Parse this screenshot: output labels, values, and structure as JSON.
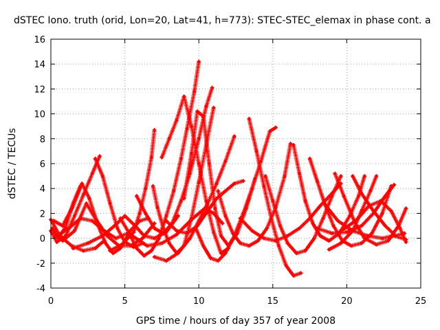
{
  "chart_data": {
    "type": "scatter",
    "title": "dSTEC Iono. truth (orid, Lon=20, Lat=41, h=773): STEC-STEC_elemax in phase cont. a",
    "xlabel": "GPS time / hours of day 357 of year 2008",
    "ylabel": "dSTEC  / TECUs",
    "xlim": [
      0,
      25
    ],
    "ylim": [
      -4,
      16
    ],
    "xticks": [
      "0",
      "5",
      "10",
      "15",
      "20",
      "25"
    ],
    "yticks": [
      "-4",
      "-2",
      "0",
      "2",
      "4",
      "6",
      "8",
      "10",
      "12",
      "14",
      "16"
    ],
    "grid": true,
    "marker": "plus",
    "color": "#ff0000",
    "series": [
      {
        "points": [
          [
            0.0,
            1.5
          ],
          [
            0.6,
            0.2
          ],
          [
            1.4,
            -0.6
          ],
          [
            2.2,
            -1.0
          ],
          [
            3.0,
            -0.8
          ],
          [
            3.6,
            -0.2
          ]
        ]
      },
      {
        "points": [
          [
            0.1,
            0.8
          ],
          [
            0.5,
            0.0
          ],
          [
            1.0,
            0.9
          ],
          [
            1.5,
            2.8
          ],
          [
            2.0,
            4.2
          ]
        ]
      },
      {
        "points": [
          [
            0.0,
            0.6
          ],
          [
            0.4,
            -0.3
          ],
          [
            1.0,
            0.2
          ],
          [
            1.6,
            1.8
          ],
          [
            2.2,
            3.5
          ],
          [
            2.8,
            5.2
          ],
          [
            3.3,
            6.6
          ]
        ]
      },
      {
        "points": [
          [
            0.2,
            1.4
          ],
          [
            0.8,
            1.0
          ],
          [
            1.5,
            2.6
          ],
          [
            2.1,
            4.4
          ],
          [
            2.6,
            3.2
          ],
          [
            3.2,
            1.0
          ],
          [
            3.7,
            -0.4
          ],
          [
            4.2,
            -1.2
          ],
          [
            4.7,
            -0.8
          ],
          [
            5.2,
            0.2
          ]
        ]
      },
      {
        "points": [
          [
            3.0,
            6.4
          ],
          [
            3.5,
            5.0
          ],
          [
            4.0,
            2.8
          ],
          [
            4.5,
            0.8
          ],
          [
            5.0,
            -0.3
          ],
          [
            5.6,
            -0.7
          ],
          [
            6.2,
            -0.4
          ]
        ]
      },
      {
        "points": [
          [
            0.8,
            -0.2
          ],
          [
            1.6,
            0.6
          ],
          [
            2.4,
            2.8
          ],
          [
            3.0,
            1.6
          ],
          [
            3.8,
            0.2
          ],
          [
            4.6,
            -0.6
          ],
          [
            5.4,
            -0.6
          ],
          [
            6.2,
            0.0
          ],
          [
            7.0,
            1.2
          ]
        ]
      },
      {
        "points": [
          [
            1.5,
            -0.8
          ],
          [
            2.5,
            -0.4
          ],
          [
            3.5,
            0.2
          ],
          [
            4.3,
            1.0
          ],
          [
            5.0,
            1.8
          ],
          [
            5.7,
            1.0
          ],
          [
            6.3,
            0.2
          ],
          [
            7.0,
            0.0
          ],
          [
            7.8,
            0.5
          ],
          [
            8.6,
            1.8
          ]
        ]
      },
      {
        "points": [
          [
            4.0,
            -1.0
          ],
          [
            4.8,
            -0.5
          ],
          [
            5.6,
            0.5
          ],
          [
            6.0,
            2.0
          ],
          [
            6.4,
            4.0
          ],
          [
            6.8,
            6.5
          ],
          [
            7.0,
            8.7
          ]
        ]
      },
      {
        "points": [
          [
            4.7,
            1.6
          ],
          [
            5.3,
            0.4
          ],
          [
            5.8,
            -0.8
          ],
          [
            6.3,
            -1.4
          ],
          [
            6.8,
            -1.0
          ],
          [
            7.3,
            0.0
          ],
          [
            7.8,
            1.8
          ],
          [
            8.3,
            3.8
          ],
          [
            8.8,
            6.4
          ],
          [
            9.2,
            8.8
          ],
          [
            9.7,
            11.8
          ],
          [
            10.0,
            14.2
          ]
        ]
      },
      {
        "points": [
          [
            6.9,
            4.2
          ],
          [
            7.2,
            2.5
          ],
          [
            7.6,
            0.8
          ],
          [
            8.0,
            -0.4
          ],
          [
            8.5,
            -1.2
          ],
          [
            9.0,
            -0.6
          ],
          [
            9.5,
            1.6
          ],
          [
            10.0,
            4.5
          ],
          [
            10.5,
            7.5
          ],
          [
            11.0,
            10.5
          ]
        ]
      },
      {
        "points": [
          [
            5.8,
            3.4
          ],
          [
            6.4,
            2.0
          ],
          [
            7.0,
            0.8
          ],
          [
            7.6,
            0.4
          ],
          [
            8.2,
            1.2
          ],
          [
            8.8,
            3.0
          ],
          [
            9.4,
            5.2
          ],
          [
            10.0,
            8.0
          ],
          [
            10.5,
            10.6
          ],
          [
            10.9,
            12.1
          ]
        ]
      },
      {
        "points": [
          [
            7.5,
            6.5
          ],
          [
            8.0,
            8.0
          ],
          [
            8.5,
            9.5
          ],
          [
            9.0,
            11.4
          ],
          [
            9.5,
            9.0
          ],
          [
            10.0,
            6.0
          ],
          [
            10.5,
            3.0
          ],
          [
            11.0,
            0.5
          ],
          [
            11.5,
            -1.2
          ],
          [
            12.0,
            -0.8
          ]
        ]
      },
      {
        "points": [
          [
            9.0,
            3.2
          ],
          [
            9.5,
            6.8
          ],
          [
            9.9,
            10.2
          ],
          [
            10.3,
            9.8
          ],
          [
            10.7,
            6.0
          ],
          [
            11.1,
            2.4
          ],
          [
            11.5,
            0.2
          ],
          [
            12.0,
            -0.6
          ],
          [
            12.6,
            0.4
          ],
          [
            13.2,
            2.4
          ],
          [
            13.8,
            4.8
          ]
        ]
      },
      {
        "points": [
          [
            7.0,
            -1.5
          ],
          [
            7.8,
            -1.8
          ],
          [
            8.6,
            -1.2
          ],
          [
            9.4,
            0.0
          ],
          [
            10.0,
            1.4
          ],
          [
            10.6,
            2.8
          ],
          [
            11.2,
            4.4
          ],
          [
            11.8,
            6.2
          ],
          [
            12.4,
            8.2
          ]
        ]
      },
      {
        "points": [
          [
            7.8,
            1.4
          ],
          [
            8.5,
            0.6
          ],
          [
            9.2,
            0.4
          ],
          [
            9.9,
            1.0
          ],
          [
            10.6,
            2.2
          ],
          [
            11.2,
            3.2
          ],
          [
            11.8,
            3.8
          ],
          [
            12.4,
            4.4
          ],
          [
            13.0,
            4.6
          ]
        ]
      },
      {
        "points": [
          [
            9.8,
            0.8
          ],
          [
            10.3,
            -0.6
          ],
          [
            10.8,
            -1.6
          ],
          [
            11.3,
            -1.8
          ],
          [
            11.8,
            -1.2
          ],
          [
            12.4,
            0.2
          ],
          [
            13.0,
            2.0
          ],
          [
            13.6,
            4.0
          ],
          [
            14.2,
            6.2
          ],
          [
            14.8,
            8.6
          ],
          [
            15.2,
            8.9
          ]
        ]
      },
      {
        "points": [
          [
            11.3,
            3.8
          ],
          [
            11.8,
            1.8
          ],
          [
            12.3,
            0.4
          ],
          [
            12.8,
            -0.4
          ],
          [
            13.4,
            -0.6
          ],
          [
            14.0,
            -0.2
          ],
          [
            14.6,
            0.8
          ],
          [
            15.2,
            2.5
          ],
          [
            15.8,
            5.0
          ],
          [
            16.2,
            7.6
          ]
        ]
      },
      {
        "points": [
          [
            13.4,
            9.6
          ],
          [
            13.9,
            7.0
          ],
          [
            14.4,
            4.2
          ],
          [
            14.9,
            1.6
          ],
          [
            15.4,
            -0.6
          ],
          [
            15.9,
            -2.2
          ],
          [
            16.4,
            -3.0
          ],
          [
            16.9,
            -2.8
          ]
        ]
      },
      {
        "points": [
          [
            14.5,
            5.0
          ],
          [
            15.0,
            3.0
          ],
          [
            15.5,
            1.0
          ],
          [
            16.0,
            -0.4
          ],
          [
            16.6,
            -1.2
          ],
          [
            17.2,
            -1.0
          ],
          [
            17.8,
            0.0
          ],
          [
            18.4,
            1.6
          ],
          [
            19.0,
            3.4
          ],
          [
            19.6,
            5.0
          ]
        ]
      },
      {
        "points": [
          [
            12.8,
            1.6
          ],
          [
            13.6,
            0.6
          ],
          [
            14.4,
            0.0
          ],
          [
            15.2,
            -0.2
          ],
          [
            16.0,
            0.2
          ],
          [
            16.8,
            0.8
          ],
          [
            17.5,
            1.6
          ],
          [
            18.2,
            2.6
          ],
          [
            19.0,
            3.6
          ],
          [
            19.6,
            4.4
          ]
        ]
      },
      {
        "points": [
          [
            16.4,
            7.5
          ],
          [
            16.8,
            5.2
          ],
          [
            17.2,
            3.0
          ],
          [
            17.7,
            1.2
          ],
          [
            18.2,
            0.2
          ],
          [
            18.8,
            -0.2
          ],
          [
            19.5,
            0.4
          ],
          [
            20.2,
            1.8
          ],
          [
            20.8,
            3.4
          ],
          [
            21.2,
            5.0
          ]
        ]
      },
      {
        "points": [
          [
            17.5,
            6.4
          ],
          [
            18.0,
            4.6
          ],
          [
            18.5,
            2.8
          ],
          [
            19.1,
            1.0
          ],
          [
            19.7,
            -0.2
          ],
          [
            20.3,
            -0.6
          ],
          [
            21.0,
            -0.4
          ],
          [
            21.7,
            0.4
          ],
          [
            22.4,
            2.0
          ],
          [
            23.0,
            4.2
          ]
        ]
      },
      {
        "points": [
          [
            18.0,
            0.8
          ],
          [
            19.0,
            0.4
          ],
          [
            20.0,
            0.5
          ],
          [
            21.0,
            1.0
          ],
          [
            21.8,
            2.0
          ],
          [
            22.6,
            3.4
          ],
          [
            23.2,
            4.3
          ]
        ]
      },
      {
        "points": [
          [
            18.8,
            -0.9
          ],
          [
            19.6,
            -0.4
          ],
          [
            20.4,
            0.6
          ],
          [
            21.0,
            2.2
          ],
          [
            21.6,
            3.8
          ],
          [
            22.0,
            5.0
          ]
        ]
      },
      {
        "points": [
          [
            19.2,
            5.2
          ],
          [
            19.8,
            3.4
          ],
          [
            20.5,
            1.4
          ],
          [
            21.2,
            0.0
          ],
          [
            22.0,
            -0.5
          ],
          [
            22.8,
            -0.2
          ],
          [
            23.5,
            1.0
          ],
          [
            24.0,
            2.4
          ]
        ]
      },
      {
        "points": [
          [
            20.4,
            5.0
          ],
          [
            21.0,
            3.6
          ],
          [
            21.8,
            2.2
          ],
          [
            22.6,
            1.0
          ],
          [
            23.3,
            0.2
          ],
          [
            23.9,
            0.4
          ]
        ]
      },
      {
        "points": [
          [
            18.6,
            2.6
          ],
          [
            19.4,
            1.4
          ],
          [
            20.4,
            0.6
          ],
          [
            21.4,
            0.2
          ],
          [
            22.4,
            0.0
          ],
          [
            23.2,
            0.2
          ],
          [
            24.0,
            -0.1
          ]
        ]
      },
      {
        "points": [
          [
            19.6,
            0.6
          ],
          [
            20.6,
            1.4
          ],
          [
            21.5,
            2.6
          ],
          [
            22.3,
            3.0
          ],
          [
            23.0,
            2.2
          ],
          [
            23.6,
            0.8
          ],
          [
            24.0,
            -0.3
          ]
        ]
      },
      {
        "points": [
          [
            5.5,
            0.2
          ],
          [
            6.5,
            -0.6
          ],
          [
            7.5,
            -0.4
          ],
          [
            8.5,
            0.3
          ],
          [
            9.5,
            1.5
          ],
          [
            10.4,
            2.4
          ],
          [
            11.0,
            2.0
          ],
          [
            11.6,
            1.2
          ]
        ]
      },
      {
        "points": [
          [
            0.3,
            0.1
          ],
          [
            1.2,
            0.8
          ],
          [
            2.0,
            1.6
          ],
          [
            2.8,
            1.4
          ],
          [
            3.6,
            0.6
          ],
          [
            4.4,
            0.0
          ],
          [
            5.2,
            0.4
          ],
          [
            6.0,
            1.4
          ],
          [
            6.6,
            1.6
          ]
        ]
      }
    ]
  }
}
